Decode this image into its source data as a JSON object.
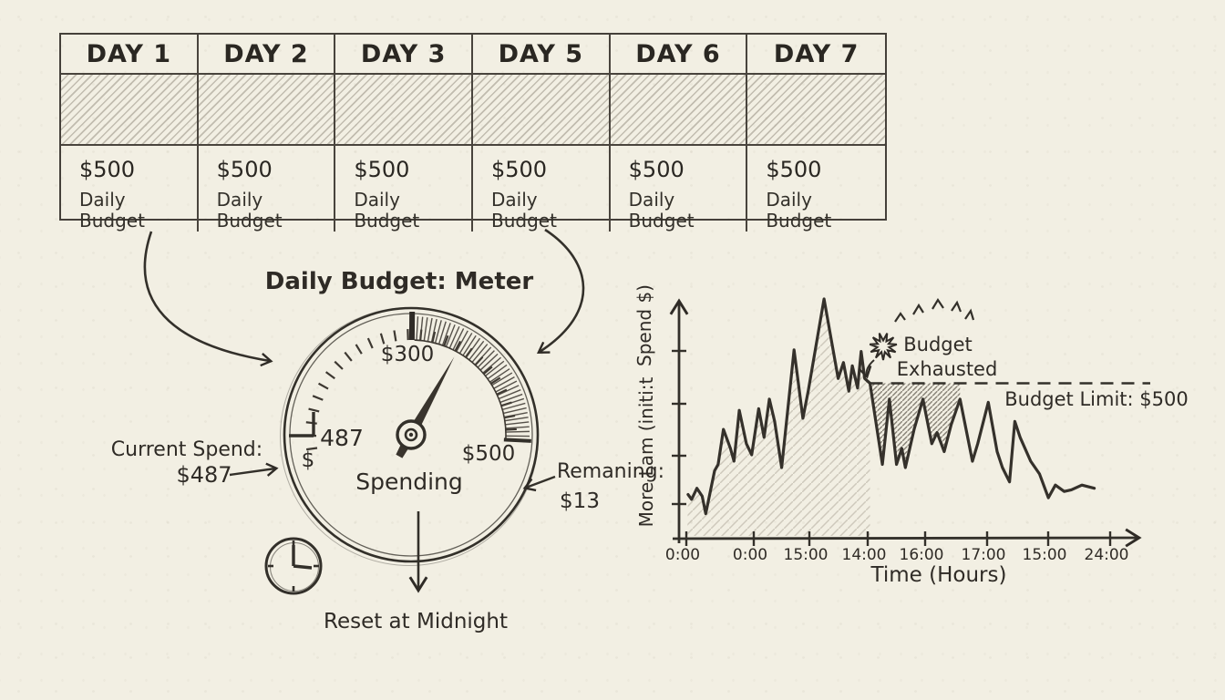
{
  "page": {
    "style": "hand-drawn sketch on paper",
    "paper_color": "#f2efe3",
    "ink_color": "#2f2b26",
    "pencil_color": "#a49d8f"
  },
  "table": {
    "days": [
      {
        "label": "DAY 1",
        "amount": "$500",
        "caption": "Daily Budget"
      },
      {
        "label": "DAY 2",
        "amount": "$500",
        "caption": "Daily Budget"
      },
      {
        "label": "DAY 3",
        "amount": "$500",
        "caption": "Daily Budget"
      },
      {
        "label": "DAY 5",
        "amount": "$500",
        "caption": "Daily Budget"
      },
      {
        "label": "DAY 6",
        "amount": "$500",
        "caption": "Daily Budget"
      },
      {
        "label": "DAY 7",
        "amount": "$500",
        "caption": "Daily Budget"
      }
    ]
  },
  "meter": {
    "title": "Daily Budget: Meter",
    "dial_top_label": "$300",
    "dial_current_label": "487",
    "dial_currency": "$",
    "dial_max_label": "$500",
    "dial_caption": "Spending",
    "needle_angle_deg": 61,
    "annotations": {
      "current_spend_label": "Current Spend:",
      "current_spend_value": "$487",
      "remaining_label": "Remaning:",
      "remaining_value": "$13",
      "reset_label": "Reset at Midnight"
    },
    "icons": [
      "clock-icon"
    ]
  },
  "chart_data": {
    "type": "line",
    "title": "",
    "xlabel": "Time (Hours)",
    "ylabel": "More Lam (initi:t Spend $)",
    "ylabel_parts": {
      "top": "Spend $)",
      "bottom": "More Lam (initi:t"
    },
    "x_tick_labels": [
      "0:00",
      "0:00",
      "15:00",
      "14:00",
      "16:00",
      "17:00",
      "15:00",
      "24:00"
    ],
    "y_tick_count": 4,
    "xlim_hours": [
      0,
      24
    ],
    "ylim_dollars": [
      0,
      800
    ],
    "grid": false,
    "legend_position": "none",
    "budget_limit": 500,
    "budget_limit_label": "Budget Limit: $500",
    "annotation": {
      "line1": "Budget",
      "line2": "Exhausted"
    },
    "exhausted_at_hour": 10.4,
    "series": [
      {
        "name": "Spend",
        "points": [
          [
            0.1,
            150
          ],
          [
            0.3,
            135
          ],
          [
            0.6,
            170
          ],
          [
            0.9,
            145
          ],
          [
            1.1,
            90
          ],
          [
            1.6,
            225
          ],
          [
            1.8,
            245
          ],
          [
            2.1,
            355
          ],
          [
            2.5,
            295
          ],
          [
            2.7,
            255
          ],
          [
            3.0,
            415
          ],
          [
            3.4,
            310
          ],
          [
            3.7,
            275
          ],
          [
            4.1,
            420
          ],
          [
            4.4,
            330
          ],
          [
            4.7,
            450
          ],
          [
            5.0,
            380
          ],
          [
            5.4,
            235
          ],
          [
            6.1,
            605
          ],
          [
            6.6,
            390
          ],
          [
            6.9,
            475
          ],
          [
            7.8,
            765
          ],
          [
            8.6,
            515
          ],
          [
            8.9,
            565
          ],
          [
            9.2,
            475
          ],
          [
            9.4,
            555
          ],
          [
            9.7,
            485
          ],
          [
            9.9,
            600
          ],
          [
            10.1,
            515
          ],
          [
            10.4,
            500
          ],
          [
            11.1,
            245
          ],
          [
            11.5,
            450
          ],
          [
            11.9,
            245
          ],
          [
            12.2,
            295
          ],
          [
            12.4,
            235
          ],
          [
            12.9,
            355
          ],
          [
            13.4,
            450
          ],
          [
            13.9,
            310
          ],
          [
            14.2,
            345
          ],
          [
            14.6,
            285
          ],
          [
            15.0,
            370
          ],
          [
            15.5,
            450
          ],
          [
            16.2,
            255
          ],
          [
            16.5,
            310
          ],
          [
            17.1,
            440
          ],
          [
            17.6,
            285
          ],
          [
            17.9,
            235
          ],
          [
            18.3,
            190
          ],
          [
            18.6,
            380
          ],
          [
            18.9,
            330
          ],
          [
            19.5,
            255
          ],
          [
            20.0,
            215
          ],
          [
            20.5,
            140
          ],
          [
            20.9,
            180
          ],
          [
            21.4,
            160
          ],
          [
            21.8,
            165
          ],
          [
            22.4,
            180
          ],
          [
            23.1,
            170
          ]
        ]
      }
    ]
  }
}
